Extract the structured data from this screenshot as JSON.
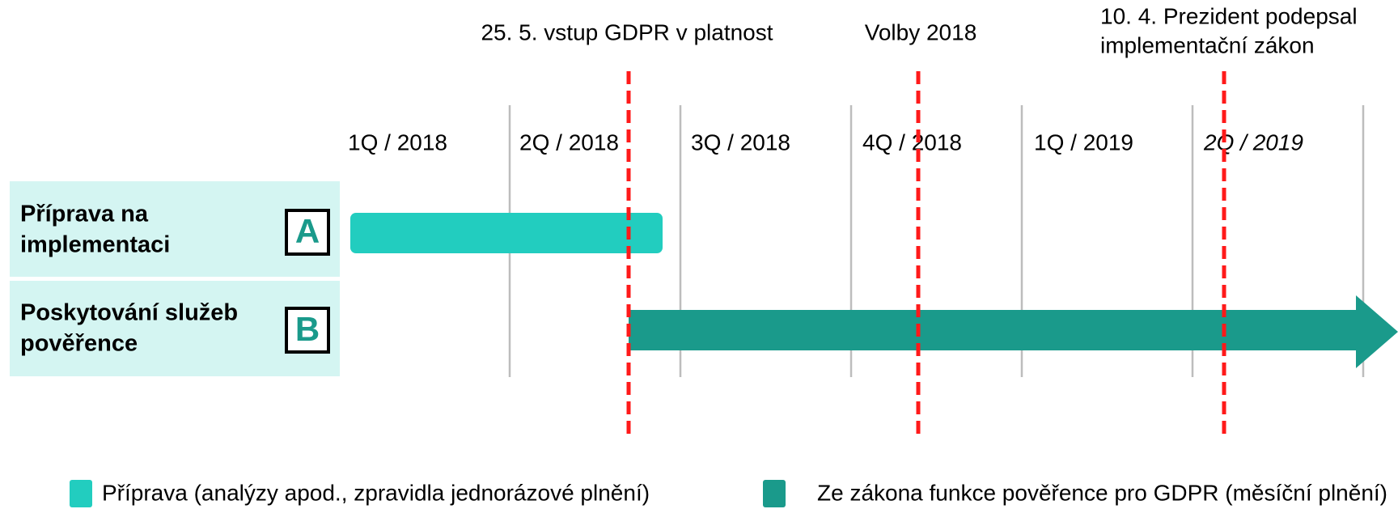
{
  "quarters": [
    "1Q / 2018",
    "2Q / 2018",
    "3Q / 2018",
    "4Q / 2018",
    "1Q / 2019",
    "2Q / 2019"
  ],
  "milestones": [
    {
      "label": "25. 5. vstup GDPR v platnost"
    },
    {
      "label": "Volby 2018"
    },
    {
      "label": [
        "10. 4. Prezident podepsal",
        "implementační zákon"
      ]
    }
  ],
  "rows": [
    {
      "label": [
        "Příprava na",
        "implementaci"
      ],
      "badge": "A"
    },
    {
      "label": [
        "Poskytování služeb",
        "pověřence"
      ],
      "badge": "B"
    }
  ],
  "legend": [
    {
      "label": "Příprava (analýzy apod., zpravidla jednorázové plnění)"
    },
    {
      "label": "Ze zákona funkce pověřence pro GDPR (měsíční plnění)"
    }
  ]
}
